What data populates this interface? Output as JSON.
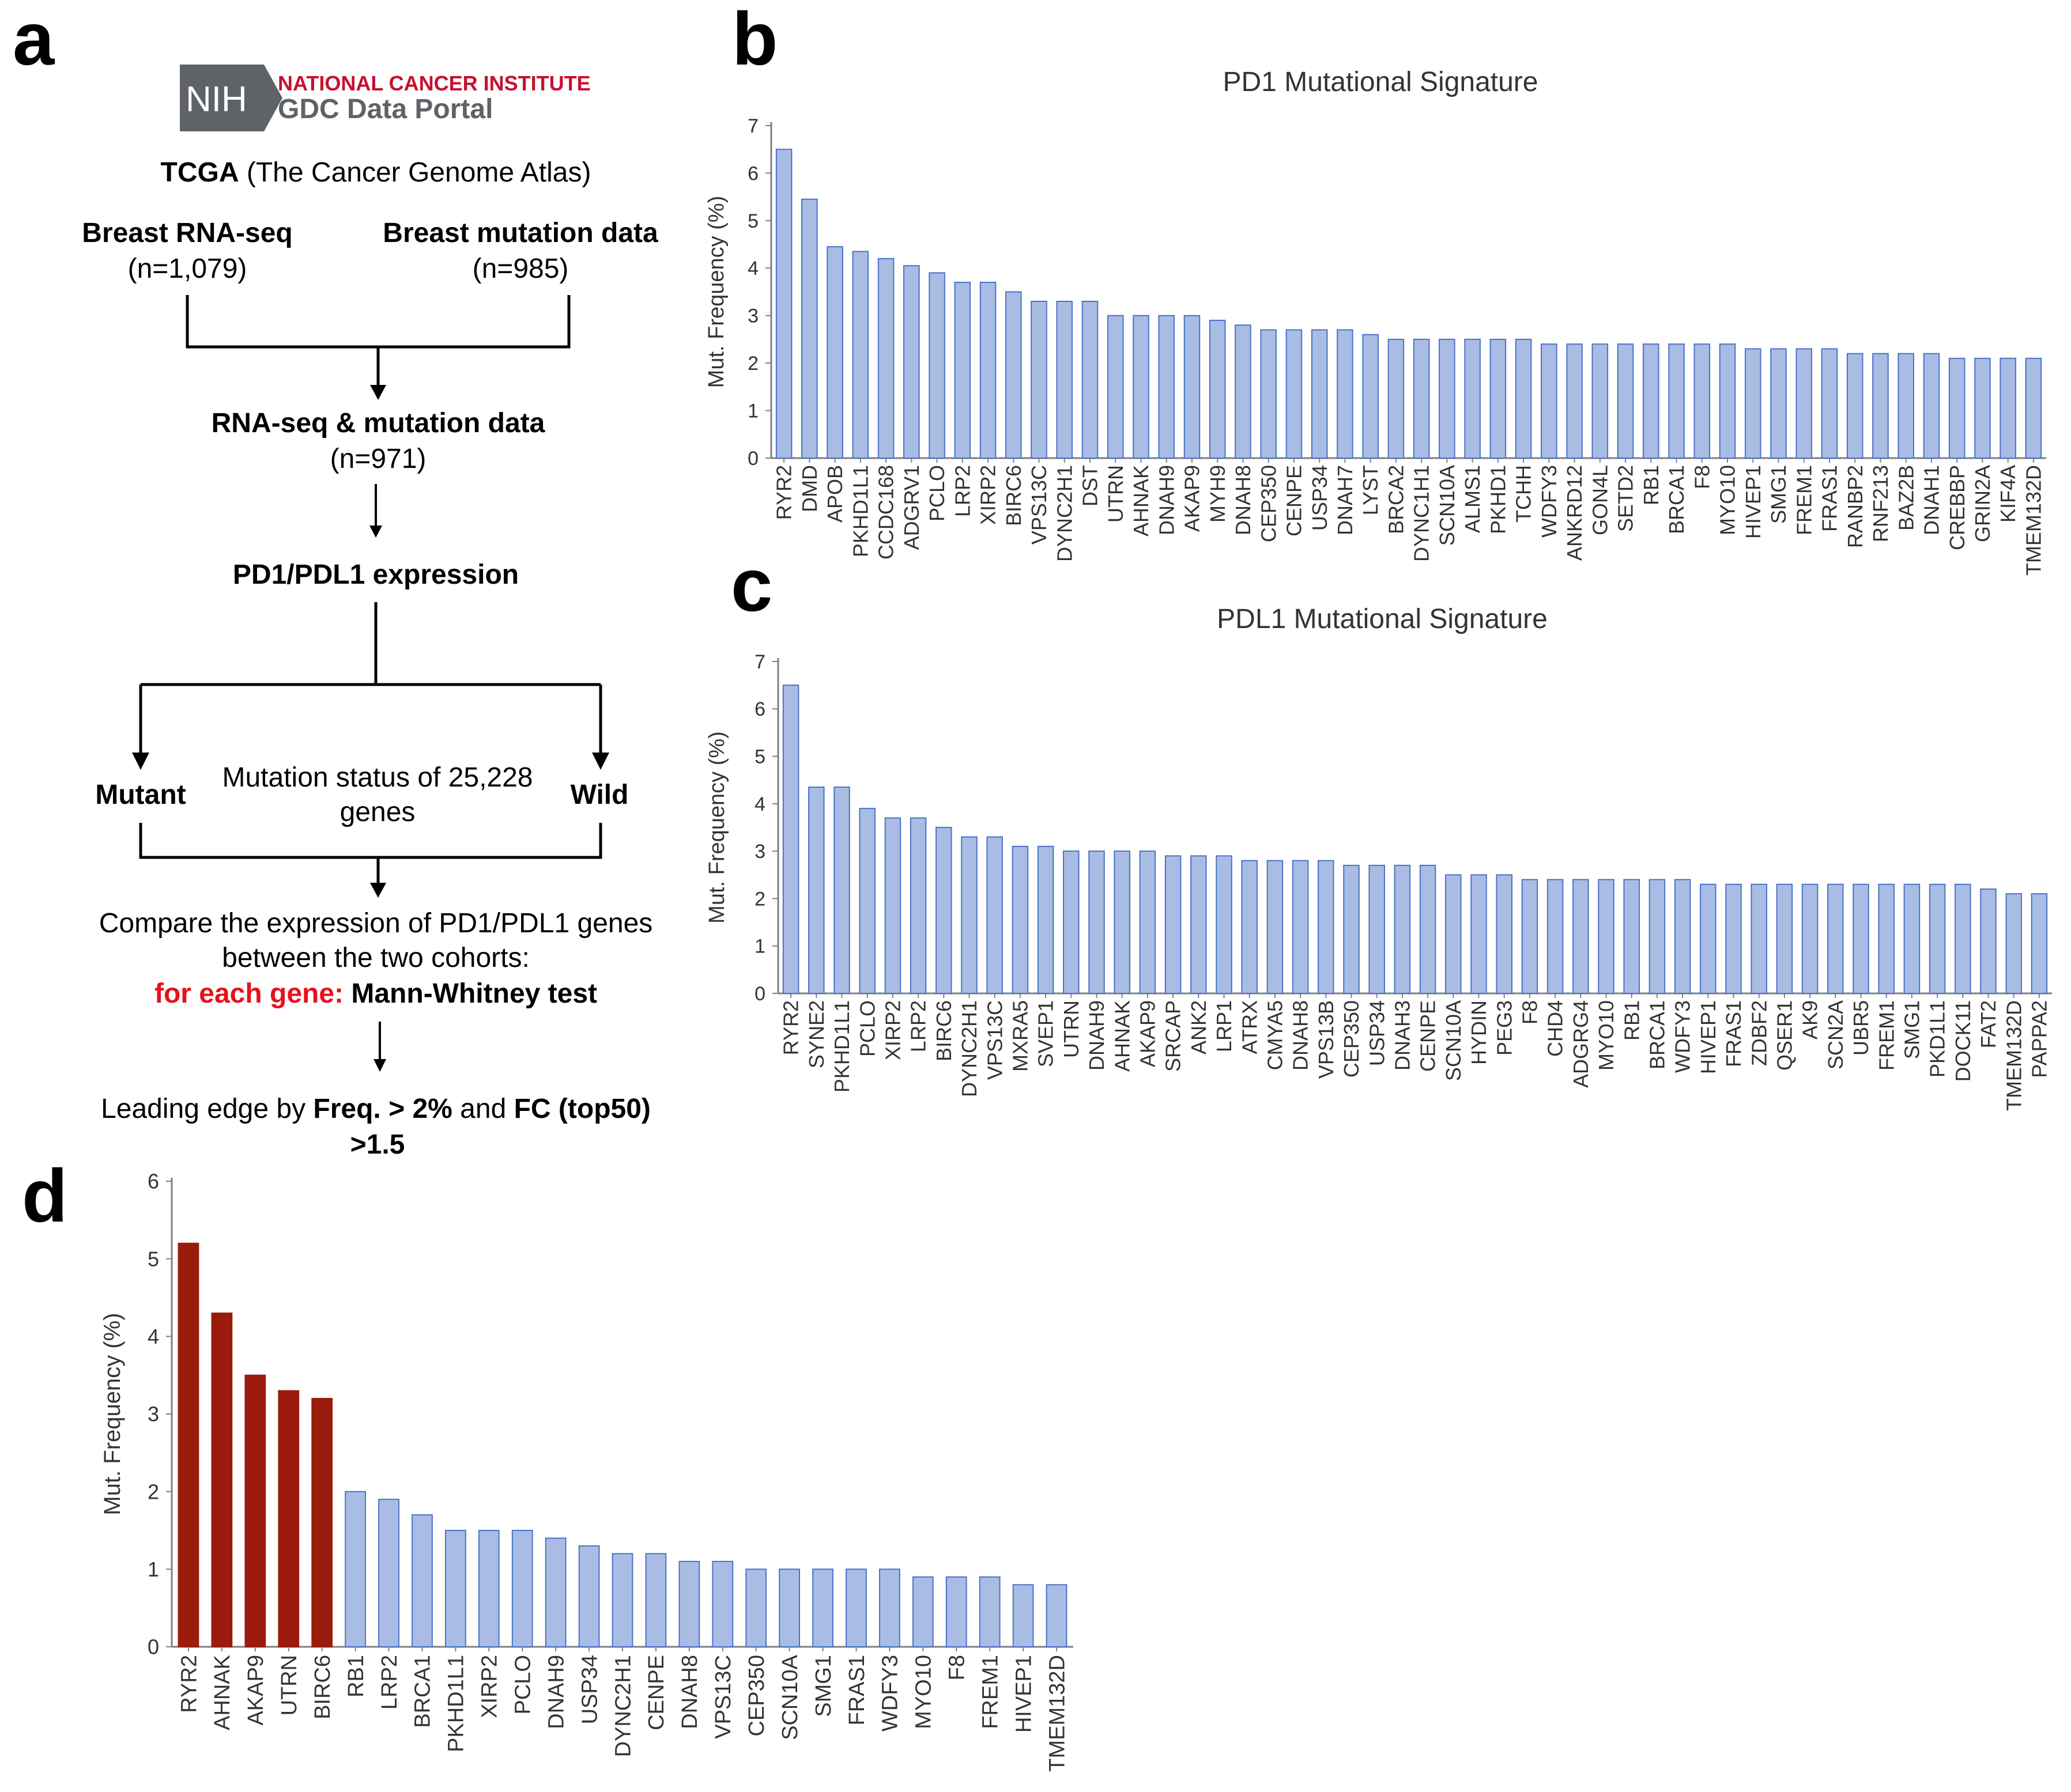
{
  "panel_labels": {
    "a": "a",
    "b": "b",
    "c": "c",
    "d": "d"
  },
  "logo": {
    "mark": "NIH",
    "line1": "NATIONAL CANCER INSTITUTE",
    "line2": "GDC Data Portal",
    "colors": {
      "mark_bg": "#5f6266",
      "line1": "#c8102e",
      "line2": "#5f6266"
    }
  },
  "flowchart": {
    "tcga_bold": "TCGA",
    "tcga_rest": " (The Cancer Genome Atlas)",
    "rna_title": "Breast RNA-seq",
    "rna_n": "(n=1,079)",
    "mut_title": "Breast mutation data",
    "mut_n": "(n=985)",
    "combined_title": "RNA-seq & mutation data",
    "combined_n": "(n=971)",
    "expression": "PD1/PDL1 expression",
    "mutant": "Mutant",
    "wild": "Wild",
    "status_line1": "Mutation status of 25,228",
    "status_line2": "genes",
    "compare_line1": "Compare the expression of PD1/PDL1 genes",
    "compare_line2": "between the two cohorts:",
    "per_gene": "for each gene:",
    "test": " Mann-Whitney test",
    "leading_prefix": "Leading edge by ",
    "freq_bold": "Freq. > 2%",
    "and_text": " and ",
    "fc_bold": "FC (top50)",
    "fc_threshold": ">1.5",
    "highlight_color": "#e8101a"
  },
  "chart_data": [
    {
      "id": "b",
      "type": "bar",
      "title": "PD1  Mutational  Signature",
      "xlabel": "",
      "ylabel": "Mut. Frequency (%)",
      "ylim": [
        0,
        7
      ],
      "yticks": [
        0,
        1,
        2,
        3,
        4,
        5,
        6,
        7
      ],
      "categories": [
        "RYR2",
        "DMD",
        "APOB",
        "PKHD1L1",
        "CCDC168",
        "ADGRV1",
        "PCLO",
        "LRP2",
        "XIRP2",
        "BIRC6",
        "VPS13C",
        "DYNC2H1",
        "DST",
        "UTRN",
        "AHNAK",
        "DNAH9",
        "AKAP9",
        "MYH9",
        "DNAH8",
        "CEP350",
        "CENPE",
        "USP34",
        "DNAH7",
        "LYST",
        "BRCA2",
        "DYNC1H1",
        "SCN10A",
        "ALMS1",
        "PKHD1",
        "TCHH",
        "WDFY3",
        "ANKRD12",
        "GON4L",
        "SETD2",
        "RB1",
        "BRCA1",
        "F8",
        "MYO10",
        "HIVEP1",
        "SMG1",
        "FREM1",
        "FRAS1",
        "RANBP2",
        "RNF213",
        "BAZ2B",
        "DNAH1",
        "CREBBP",
        "GRIN2A",
        "KIF4A",
        "TMEM132D"
      ],
      "values": [
        6.5,
        5.45,
        4.45,
        4.35,
        4.2,
        4.05,
        3.9,
        3.7,
        3.7,
        3.5,
        3.3,
        3.3,
        3.3,
        3.0,
        3.0,
        3.0,
        3.0,
        2.9,
        2.8,
        2.7,
        2.7,
        2.7,
        2.7,
        2.6,
        2.5,
        2.5,
        2.5,
        2.5,
        2.5,
        2.5,
        2.4,
        2.4,
        2.4,
        2.4,
        2.4,
        2.4,
        2.4,
        2.4,
        2.3,
        2.3,
        2.3,
        2.3,
        2.2,
        2.2,
        2.2,
        2.2,
        2.1,
        2.1,
        2.1,
        2.1
      ],
      "color": "#a9bce4",
      "edge_color": "#4a72c8"
    },
    {
      "id": "c",
      "type": "bar",
      "title": "PDL1  Mutational  Signature",
      "xlabel": "",
      "ylabel": "Mut. Frequency (%)",
      "ylim": [
        0,
        7
      ],
      "yticks": [
        0,
        1,
        2,
        3,
        4,
        5,
        6,
        7
      ],
      "categories": [
        "RYR2",
        "SYNE2",
        "PKHD1L1",
        "PCLO",
        "XIRP2",
        "LRP2",
        "BIRC6",
        "DYNC2H1",
        "VPS13C",
        "MXRA5",
        "SVEP1",
        "UTRN",
        "DNAH9",
        "AHNAK",
        "AKAP9",
        "SRCAP",
        "ANK2",
        "LRP1",
        "ATRX",
        "CMYA5",
        "DNAH8",
        "VPS13B",
        "CEP350",
        "USP34",
        "DNAH3",
        "CENPE",
        "SCN10A",
        "HYDIN",
        "PEG3",
        "F8",
        "CHD4",
        "ADGRG4",
        "MYO10",
        "RB1",
        "BRCA1",
        "WDFY3",
        "HIVEP1",
        "FRAS1",
        "ZDBF2",
        "QSER1",
        "AK9",
        "SCN2A",
        "UBR5",
        "FREM1",
        "SMG1",
        "PKD1L1",
        "DOCK11",
        "FAT2",
        "TMEM132D",
        "PAPPA2"
      ],
      "values": [
        6.5,
        4.35,
        4.35,
        3.9,
        3.7,
        3.7,
        3.5,
        3.3,
        3.3,
        3.1,
        3.1,
        3.0,
        3.0,
        3.0,
        3.0,
        2.9,
        2.9,
        2.9,
        2.8,
        2.8,
        2.8,
        2.8,
        2.7,
        2.7,
        2.7,
        2.7,
        2.5,
        2.5,
        2.5,
        2.4,
        2.4,
        2.4,
        2.4,
        2.4,
        2.4,
        2.4,
        2.3,
        2.3,
        2.3,
        2.3,
        2.3,
        2.3,
        2.3,
        2.3,
        2.3,
        2.3,
        2.3,
        2.2,
        2.1,
        2.1
      ],
      "color": "#a9bce4",
      "edge_color": "#4a72c8"
    },
    {
      "id": "d",
      "type": "bar",
      "title": "",
      "xlabel": "",
      "ylabel": "Mut. Frequency (%)",
      "ylim": [
        0,
        6
      ],
      "yticks": [
        0,
        1,
        2,
        3,
        4,
        5,
        6
      ],
      "categories": [
        "RYR2",
        "AHNAK",
        "AKAP9",
        "UTRN",
        "BIRC6",
        "RB1",
        "LRP2",
        "BRCA1",
        "PKHD1L1",
        "XIRP2",
        "PCLO",
        "DNAH9",
        "USP34",
        "DYNC2H1",
        "CENPE",
        "DNAH8",
        "VPS13C",
        "CEP350",
        "SCN10A",
        "SMG1",
        "FRAS1",
        "WDFY3",
        "MYO10",
        "F8",
        "FREM1",
        "HIVEP1",
        "TMEM132D"
      ],
      "values": [
        5.2,
        4.3,
        3.5,
        3.3,
        3.2,
        2.0,
        1.9,
        1.7,
        1.5,
        1.5,
        1.5,
        1.4,
        1.3,
        1.2,
        1.2,
        1.1,
        1.1,
        1.0,
        1.0,
        1.0,
        1.0,
        1.0,
        0.9,
        0.9,
        0.9,
        0.8,
        0.8
      ],
      "highlighted_count": 5,
      "highlight_color": "#9b1c0c",
      "color": "#a9bce4",
      "edge_color": "#4a72c8"
    }
  ]
}
